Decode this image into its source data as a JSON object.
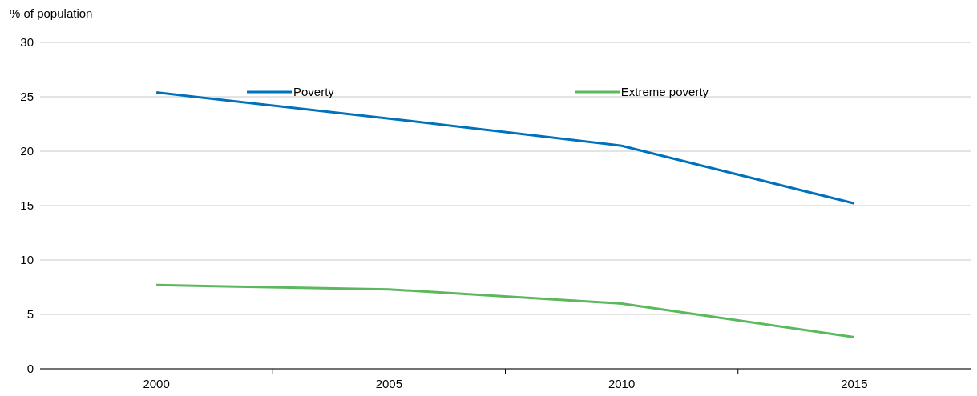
{
  "chart_data": {
    "type": "line",
    "ylabel": "% of population",
    "categories": [
      "2000",
      "2005",
      "2010",
      "2015"
    ],
    "series": [
      {
        "name": "Poverty",
        "color": "#0072bc",
        "values": [
          25.4,
          23.0,
          20.5,
          15.2
        ]
      },
      {
        "name": "Extreme poverty",
        "color": "#5cb85c",
        "values": [
          7.7,
          7.3,
          6.0,
          2.9
        ]
      }
    ],
    "ylim": [
      0,
      30
    ],
    "yticks": [
      0,
      5,
      10,
      15,
      20,
      25,
      30
    ],
    "grid": "y",
    "legend": "top",
    "marker": "none",
    "line_style": "solid"
  }
}
